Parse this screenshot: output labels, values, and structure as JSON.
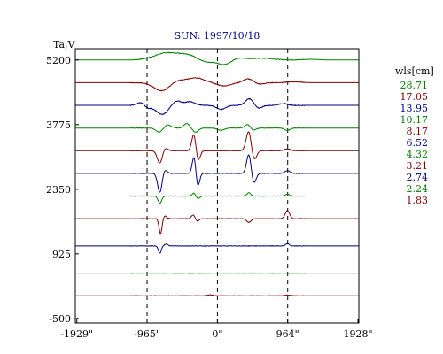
{
  "chart_data": {
    "type": "line",
    "title": "SUN: 1997/10/18",
    "ylabel": "Ta,V",
    "xlabel": "",
    "xlim": [
      -1950,
      1940
    ],
    "ylim": [
      -600,
      5450
    ],
    "x_ticks": [
      {
        "value": -1929,
        "label": "-1929\""
      },
      {
        "value": -965,
        "label": "-965\""
      },
      {
        "value": 0,
        "label": "0\""
      },
      {
        "value": 964,
        "label": "964\""
      },
      {
        "value": 1928,
        "label": "1928\""
      }
    ],
    "y_ticks": [
      {
        "value": 5200,
        "label": "5200"
      },
      {
        "value": 3775,
        "label": "3775"
      },
      {
        "value": 2350,
        "label": "2350"
      },
      {
        "value": 925,
        "label": "925"
      },
      {
        "value": -500,
        "label": "-500"
      }
    ],
    "dashed_reference_lines_x": [
      -965,
      0,
      964
    ],
    "legend_title": "wls[cm]",
    "legend_position": "right",
    "series": [
      {
        "name": "28.71",
        "color": "#008000",
        "baseline": 5200,
        "features": [
          {
            "x": -820,
            "amp": -70,
            "w": 120
          },
          {
            "x": -760,
            "amp": 200,
            "w": 150
          },
          {
            "x": -430,
            "amp": 120,
            "w": 140
          },
          {
            "x": -150,
            "amp": -60,
            "w": 100
          },
          {
            "x": 110,
            "amp": -120,
            "w": 90
          },
          {
            "x": 250,
            "amp": 55,
            "w": 110
          },
          {
            "x": 620,
            "amp": 40,
            "w": 150
          },
          {
            "x": 1280,
            "amp": 15,
            "w": 120
          }
        ]
      },
      {
        "name": "17.05",
        "color": "#800000",
        "baseline": 4700,
        "features": [
          {
            "x": -760,
            "amp": -180,
            "w": 110
          },
          {
            "x": -560,
            "amp": 60,
            "w": 90
          },
          {
            "x": -300,
            "amp": 110,
            "w": 110
          },
          {
            "x": 90,
            "amp": -70,
            "w": 90
          },
          {
            "x": 430,
            "amp": 90,
            "w": 70
          },
          {
            "x": 560,
            "amp": -40,
            "w": 70
          },
          {
            "x": 1050,
            "amp": 20,
            "w": 100
          }
        ]
      },
      {
        "name": "13.95",
        "color": "#000080",
        "baseline": 4200,
        "features": [
          {
            "x": -1050,
            "amp": 70,
            "w": 50
          },
          {
            "x": -960,
            "amp": -60,
            "w": 50
          },
          {
            "x": -760,
            "amp": -200,
            "w": 80
          },
          {
            "x": -560,
            "amp": 100,
            "w": 60
          },
          {
            "x": -380,
            "amp": 80,
            "w": 70
          },
          {
            "x": 50,
            "amp": -90,
            "w": 60
          },
          {
            "x": 440,
            "amp": 150,
            "w": 55
          },
          {
            "x": 560,
            "amp": -70,
            "w": 50
          },
          {
            "x": 900,
            "amp": 40,
            "w": 60
          }
        ]
      },
      {
        "name": "10.17",
        "color": "#008000",
        "baseline": 3700,
        "features": [
          {
            "x": -800,
            "amp": -90,
            "w": 45
          },
          {
            "x": -680,
            "amp": 70,
            "w": 45
          },
          {
            "x": -420,
            "amp": 100,
            "w": 40
          },
          {
            "x": -300,
            "amp": -90,
            "w": 40
          },
          {
            "x": 50,
            "amp": -50,
            "w": 45
          },
          {
            "x": 420,
            "amp": 90,
            "w": 40
          },
          {
            "x": 480,
            "amp": -60,
            "w": 40
          },
          {
            "x": 960,
            "amp": -50,
            "w": 40
          }
        ]
      },
      {
        "name": "8.17",
        "color": "#800000",
        "baseline": 3200,
        "features": [
          {
            "x": -790,
            "amp": -280,
            "w": 35
          },
          {
            "x": -720,
            "amp": 70,
            "w": 35
          },
          {
            "x": -320,
            "amp": 400,
            "w": 30
          },
          {
            "x": -270,
            "amp": -260,
            "w": 30
          },
          {
            "x": 430,
            "amp": 440,
            "w": 35
          },
          {
            "x": 500,
            "amp": -220,
            "w": 35
          },
          {
            "x": 960,
            "amp": 40,
            "w": 40
          }
        ]
      },
      {
        "name": "6.52",
        "color": "#000080",
        "baseline": 2700,
        "features": [
          {
            "x": -790,
            "amp": -420,
            "w": 30
          },
          {
            "x": -720,
            "amp": 80,
            "w": 30
          },
          {
            "x": -320,
            "amp": 380,
            "w": 25
          },
          {
            "x": -270,
            "amp": -300,
            "w": 25
          },
          {
            "x": 430,
            "amp": 420,
            "w": 30
          },
          {
            "x": 500,
            "amp": -220,
            "w": 30
          },
          {
            "x": 960,
            "amp": 60,
            "w": 35
          }
        ]
      },
      {
        "name": "4.32",
        "color": "#008000",
        "baseline": 2200,
        "features": [
          {
            "x": -790,
            "amp": -160,
            "w": 25
          },
          {
            "x": -320,
            "amp": 70,
            "w": 25
          },
          {
            "x": -270,
            "amp": -60,
            "w": 25
          },
          {
            "x": 430,
            "amp": 70,
            "w": 25
          },
          {
            "x": 960,
            "amp": 40,
            "w": 30
          }
        ]
      },
      {
        "name": "3.21",
        "color": "#800000",
        "baseline": 1700,
        "features": [
          {
            "x": -780,
            "amp": -330,
            "w": 20
          },
          {
            "x": -720,
            "amp": 60,
            "w": 25
          },
          {
            "x": -330,
            "amp": 90,
            "w": 25
          },
          {
            "x": -280,
            "amp": -60,
            "w": 25
          },
          {
            "x": 430,
            "amp": -80,
            "w": 30
          },
          {
            "x": 960,
            "amp": 180,
            "w": 30
          }
        ]
      },
      {
        "name": "2.74",
        "color": "#000080",
        "baseline": 1100,
        "features": [
          {
            "x": -790,
            "amp": -160,
            "w": 20
          },
          {
            "x": -700,
            "amp": 40,
            "w": 25
          },
          {
            "x": 960,
            "amp": 50,
            "w": 25
          }
        ]
      },
      {
        "name": "2.24",
        "color": "#008000",
        "baseline": 500,
        "features": []
      },
      {
        "name": "1.83",
        "color": "#800000",
        "baseline": 0,
        "features": [
          {
            "x": -100,
            "amp": 20,
            "w": 40
          },
          {
            "x": 960,
            "amp": 15,
            "w": 40
          }
        ]
      }
    ]
  }
}
